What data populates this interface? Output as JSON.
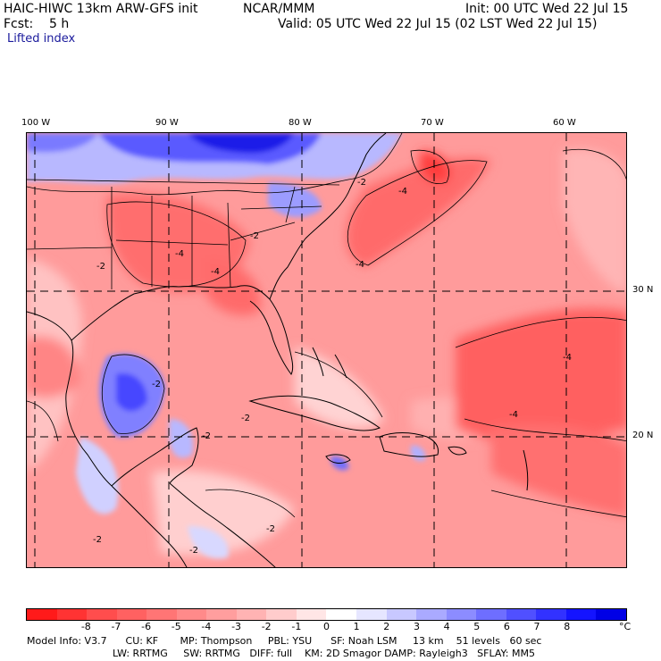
{
  "header": {
    "model": "HAIC-HIWC 13km ARW-GFS init",
    "org": "NCAR/MMM",
    "init": "Init: 00 UTC Wed 22 Jul 15",
    "fcst": "Fcst:    5 h",
    "valid": "Valid: 05 UTC Wed 22 Jul 15 (02 LST Wed 22 Jul 15)",
    "field": "Lifted index"
  },
  "map": {
    "lon_labels": [
      "100 W",
      "90 W",
      "80 W",
      "70 W",
      "60 W"
    ],
    "lat_labels": [
      "30 N",
      "20 N"
    ],
    "contour_labels": [
      "-2",
      "-4",
      "-2",
      "-4",
      "-2",
      "-4",
      "-2",
      "-4",
      "-2",
      "-4",
      "-2",
      "-2",
      "-4",
      "-2",
      "-2"
    ]
  },
  "colorbar": {
    "colors": [
      "#ff1a1a",
      "#ff3333",
      "#ff4d4d",
      "#ff6161",
      "#ff7575",
      "#ff8a8a",
      "#ff9e9e",
      "#ffb3b3",
      "#ffcccc",
      "#ffe6e6",
      "#ffffff",
      "#e6e6ff",
      "#c8c8ff",
      "#aaaaff",
      "#8c8cff",
      "#6e6eff",
      "#5050ff",
      "#3232ff",
      "#1414ff",
      "#0000e6"
    ],
    "ticks": [
      "-8",
      "-7",
      "-6",
      "-5",
      "-4",
      "-3",
      "-2",
      "-1",
      "0",
      "1",
      "2",
      "3",
      "4",
      "5",
      "6",
      "7",
      "8"
    ],
    "unit": "°C"
  },
  "model_info": {
    "line1": "Model Info: V3.7      CU: KF       MP: Thompson     PBL: YSU      SF: Noah LSM     13 km    51 levels   60 sec",
    "line2": "LW: RRTMG     SW: RRTMG   DIFF: full    KM: 2D Smagor DAMP: Rayleigh3   SFLAY: MM5"
  }
}
